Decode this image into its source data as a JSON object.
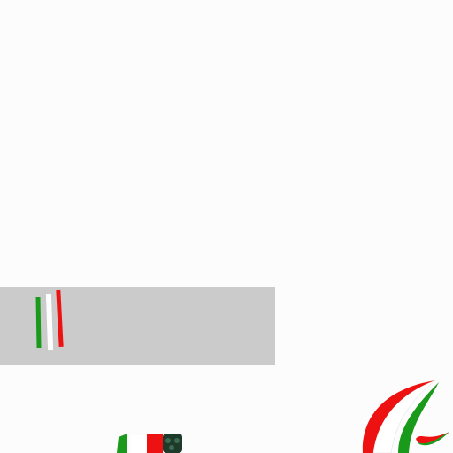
{
  "canvas": {
    "background": "#fcfcfc"
  },
  "panel": {
    "color": "#cbcbcb"
  },
  "flag_colors": {
    "green": "#1a9a1a",
    "white": "#ffffff",
    "red": "#ee1111",
    "dark": "#1d3a2a"
  },
  "icons": {
    "stripes": "italian-flag-stripes-icon",
    "swoosh": "tricolor-swoosh-logo-icon",
    "cropped": "tricolor-flag-fragment-icon"
  }
}
